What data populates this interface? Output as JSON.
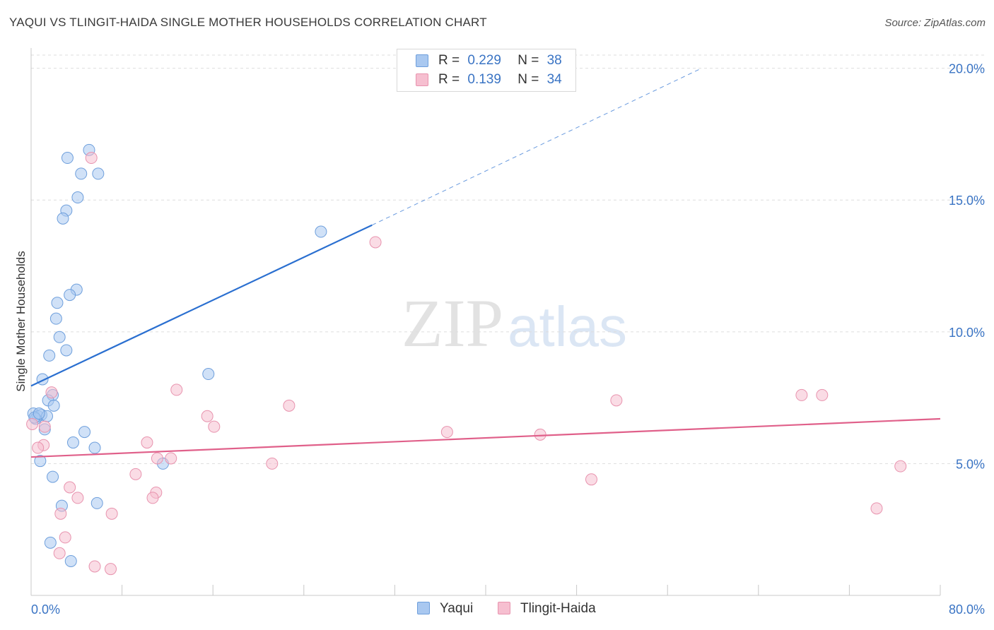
{
  "title": "YAQUI VS TLINGIT-HAIDA SINGLE MOTHER HOUSEHOLDS CORRELATION CHART",
  "source": "Source: ZipAtlas.com",
  "watermark": {
    "zip": "ZIP",
    "atlas": "atlas"
  },
  "legend": [
    {
      "r_label": "R =",
      "r_value": "0.229",
      "n_label": "N =",
      "n_value": "38"
    },
    {
      "r_label": "R =",
      "r_value": "0.139",
      "n_label": "N =",
      "n_value": "34"
    }
  ],
  "bottom_legend": [
    "Yaqui",
    "Tlingit-Haida"
  ],
  "colors": {
    "yaqui_fill": "#a9c8f0",
    "yaqui_stroke": "#6e9fdc",
    "yaqui_line": "#2a6fd0",
    "tlingit_fill": "#f6bfd0",
    "tlingit_stroke": "#e893ae",
    "tlingit_line": "#e0608a",
    "tick_text": "#3a74c4",
    "grid": "#dddddd"
  },
  "chart_data": {
    "type": "scatter",
    "title": "YAQUI VS TLINGIT-HAIDA SINGLE MOTHER HOUSEHOLDS CORRELATION CHART",
    "xlabel": "",
    "ylabel": "Single Mother Households",
    "xlim": [
      0,
      80
    ],
    "ylim": [
      0,
      20.5
    ],
    "x_tick_labels": [
      "0.0%",
      "80.0%"
    ],
    "y_ticks": [
      5,
      10,
      15,
      20
    ],
    "y_tick_labels": [
      "5.0%",
      "10.0%",
      "15.0%",
      "20.0%"
    ],
    "grid": "horizontal dashed",
    "legend_position": "top-center",
    "series": [
      {
        "name": "Yaqui",
        "r": 0.229,
        "n": 38,
        "points": [
          [
            5.1,
            16.9
          ],
          [
            3.2,
            16.6
          ],
          [
            4.4,
            16.0
          ],
          [
            5.9,
            16.0
          ],
          [
            4.1,
            15.1
          ],
          [
            3.1,
            14.6
          ],
          [
            2.8,
            14.3
          ],
          [
            25.5,
            13.8
          ],
          [
            4.0,
            11.6
          ],
          [
            3.4,
            11.4
          ],
          [
            2.3,
            11.1
          ],
          [
            2.2,
            10.5
          ],
          [
            2.5,
            9.8
          ],
          [
            3.1,
            9.3
          ],
          [
            1.6,
            9.1
          ],
          [
            1.0,
            8.2
          ],
          [
            15.6,
            8.4
          ],
          [
            1.9,
            7.6
          ],
          [
            1.5,
            7.4
          ],
          [
            2.0,
            7.2
          ],
          [
            0.2,
            6.9
          ],
          [
            0.6,
            6.8
          ],
          [
            0.9,
            6.85
          ],
          [
            1.4,
            6.8
          ],
          [
            0.4,
            6.7
          ],
          [
            4.7,
            6.2
          ],
          [
            3.7,
            5.8
          ],
          [
            5.6,
            5.6
          ],
          [
            0.8,
            5.1
          ],
          [
            11.6,
            5.0
          ],
          [
            1.9,
            4.5
          ],
          [
            2.7,
            3.4
          ],
          [
            5.8,
            3.5
          ],
          [
            1.7,
            2.0
          ],
          [
            3.5,
            1.3
          ],
          [
            0.3,
            6.75
          ],
          [
            1.2,
            6.3
          ],
          [
            0.7,
            6.9
          ]
        ],
        "trend": {
          "x": [
            0,
            30
          ],
          "y": [
            7.95,
            14.05
          ]
        },
        "trend_dashed": {
          "x": [
            30,
            59
          ],
          "y": [
            14.05,
            20.0
          ]
        }
      },
      {
        "name": "Tlingit-Haida",
        "r": 0.139,
        "n": 34,
        "points": [
          [
            5.3,
            16.6
          ],
          [
            30.3,
            13.4
          ],
          [
            12.8,
            7.8
          ],
          [
            1.8,
            7.7
          ],
          [
            22.7,
            7.2
          ],
          [
            51.5,
            7.4
          ],
          [
            67.8,
            7.6
          ],
          [
            69.6,
            7.6
          ],
          [
            15.5,
            6.8
          ],
          [
            16.1,
            6.4
          ],
          [
            1.2,
            6.4
          ],
          [
            36.6,
            6.2
          ],
          [
            44.8,
            6.1
          ],
          [
            10.2,
            5.8
          ],
          [
            1.1,
            5.7
          ],
          [
            0.6,
            5.6
          ],
          [
            11.1,
            5.2
          ],
          [
            12.3,
            5.2
          ],
          [
            21.2,
            5.0
          ],
          [
            76.5,
            4.9
          ],
          [
            9.2,
            4.6
          ],
          [
            49.3,
            4.4
          ],
          [
            3.4,
            4.1
          ],
          [
            11.0,
            3.9
          ],
          [
            10.7,
            3.7
          ],
          [
            4.1,
            3.7
          ],
          [
            74.4,
            3.3
          ],
          [
            2.6,
            3.1
          ],
          [
            7.1,
            3.1
          ],
          [
            3.0,
            2.2
          ],
          [
            2.5,
            1.6
          ],
          [
            5.6,
            1.1
          ],
          [
            7.0,
            1.0
          ],
          [
            0.1,
            6.5
          ]
        ],
        "trend": {
          "x": [
            0,
            80
          ],
          "y": [
            5.25,
            6.7
          ]
        }
      }
    ]
  }
}
